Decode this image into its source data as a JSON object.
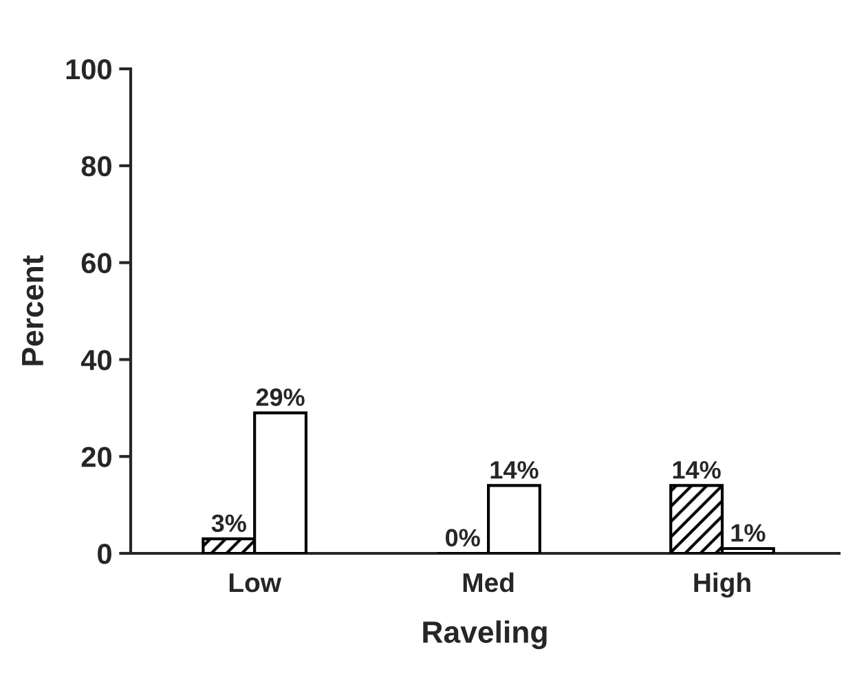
{
  "chart_data": {
    "type": "bar",
    "xlabel": "Raveling",
    "ylabel": "Percent",
    "categories": [
      "Low",
      "Med",
      "High"
    ],
    "series": [
      {
        "color": "#000000",
        "values": [
          3,
          0,
          14
        ],
        "value_labels": [
          "3%",
          "0%",
          "14%"
        ]
      },
      {
        "color": "#ffffff",
        "values": [
          29,
          14,
          1
        ],
        "value_labels": [
          "29%",
          "14%",
          "1%"
        ]
      }
    ],
    "ylim": [
      0,
      100
    ],
    "yticks": [
      0,
      20,
      40,
      60,
      80,
      100
    ],
    "grid": false,
    "legend": false
  }
}
